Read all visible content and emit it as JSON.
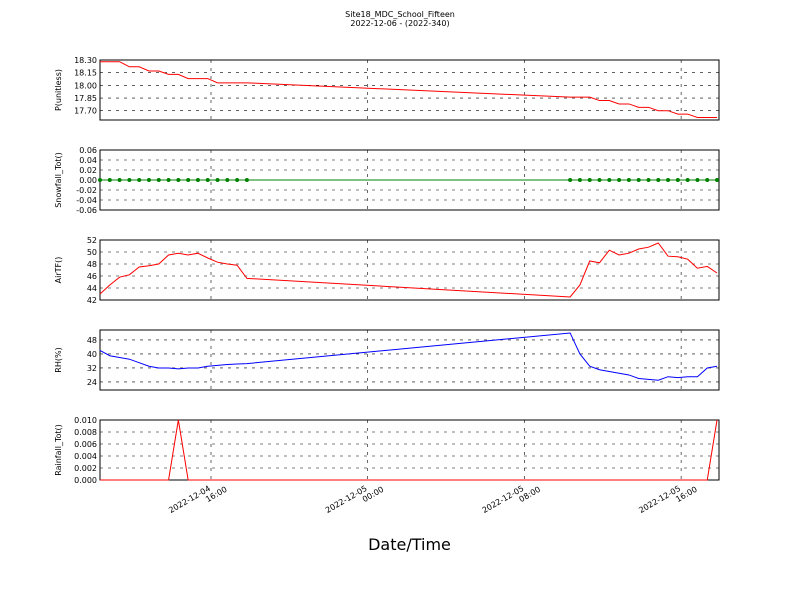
{
  "title": "Site18_MDC_School_Fifteen",
  "subtitle": "2022-12-06 - (2022-340)",
  "chart_data": [
    {
      "type": "line",
      "ylabel": "P(unitless)",
      "x": [
        "2022-12-04 10:20",
        "2022-12-04 10:50",
        "2022-12-04 11:20",
        "2022-12-04 11:50",
        "2022-12-04 12:20",
        "2022-12-04 12:50",
        "2022-12-04 13:20",
        "2022-12-04 13:50",
        "2022-12-04 14:20",
        "2022-12-04 14:50",
        "2022-12-04 15:20",
        "2022-12-04 15:50",
        "2022-12-04 16:20",
        "2022-12-04 16:50",
        "2022-12-04 17:20",
        "2022-12-04 17:50",
        "2022-12-05 10:20",
        "2022-12-05 10:50",
        "2022-12-05 11:20",
        "2022-12-05 11:50",
        "2022-12-05 12:20",
        "2022-12-05 12:50",
        "2022-12-05 13:20",
        "2022-12-05 13:50",
        "2022-12-05 14:20",
        "2022-12-05 14:50",
        "2022-12-05 15:20",
        "2022-12-05 15:50",
        "2022-12-05 16:20",
        "2022-12-05 16:50",
        "2022-12-05 17:20",
        "2022-12-05 17:50"
      ],
      "series": [
        {
          "color": "#ff0000",
          "values": [
            18.28,
            18.28,
            18.28,
            18.22,
            18.22,
            18.17,
            18.17,
            18.13,
            18.13,
            18.08,
            18.08,
            18.08,
            18.03,
            18.03,
            18.03,
            18.03,
            17.86,
            17.86,
            17.86,
            17.82,
            17.82,
            17.78,
            17.78,
            17.74,
            17.74,
            17.7,
            17.7,
            17.66,
            17.66,
            17.62,
            17.62,
            17.62
          ]
        }
      ],
      "ylim": [
        17.59,
        18.3
      ],
      "yticks": [
        {
          "value": 17.7,
          "label": "17.70"
        },
        17.85,
        {
          "value": 18.0,
          "label": "18.00"
        },
        18.15,
        {
          "value": 18.3,
          "label": "18.30"
        }
      ]
    },
    {
      "type": "line",
      "ylabel": "Snowfall_Tot()",
      "x": [
        "2022-12-04 10:20",
        "2022-12-04 10:50",
        "2022-12-04 11:20",
        "2022-12-04 11:50",
        "2022-12-04 12:20",
        "2022-12-04 12:50",
        "2022-12-04 13:20",
        "2022-12-04 13:50",
        "2022-12-04 14:20",
        "2022-12-04 14:50",
        "2022-12-04 15:20",
        "2022-12-04 15:50",
        "2022-12-04 16:20",
        "2022-12-04 16:50",
        "2022-12-04 17:20",
        "2022-12-04 17:50",
        "2022-12-05 10:20",
        "2022-12-05 10:50",
        "2022-12-05 11:20",
        "2022-12-05 11:50",
        "2022-12-05 12:20",
        "2022-12-05 12:50",
        "2022-12-05 13:20",
        "2022-12-05 13:50",
        "2022-12-05 14:20",
        "2022-12-05 14:50",
        "2022-12-05 15:20",
        "2022-12-05 15:50",
        "2022-12-05 16:20",
        "2022-12-05 16:50",
        "2022-12-05 17:20",
        "2022-12-05 17:50"
      ],
      "series": [
        {
          "color": "#008000",
          "marker": true,
          "values": [
            0,
            0,
            0,
            0,
            0,
            0,
            0,
            0,
            0,
            0,
            0,
            0,
            0,
            0,
            0,
            0,
            0,
            0,
            0,
            0,
            0,
            0,
            0,
            0,
            0,
            0,
            0,
            0,
            0,
            0,
            0,
            0
          ]
        }
      ],
      "ylim": [
        -0.06,
        0.06
      ],
      "yticks": [
        -0.06,
        -0.04,
        -0.02,
        {
          "value": 0,
          "label": "0.00"
        },
        0.02,
        0.04,
        0.06
      ]
    },
    {
      "type": "line",
      "ylabel": "AirTF()",
      "x": [
        "2022-12-04 10:20",
        "2022-12-04 10:50",
        "2022-12-04 11:20",
        "2022-12-04 11:50",
        "2022-12-04 12:20",
        "2022-12-04 12:50",
        "2022-12-04 13:20",
        "2022-12-04 13:50",
        "2022-12-04 14:20",
        "2022-12-04 14:50",
        "2022-12-04 15:20",
        "2022-12-04 15:50",
        "2022-12-04 16:20",
        "2022-12-04 16:50",
        "2022-12-04 17:20",
        "2022-12-04 17:50",
        "2022-12-05 10:20",
        "2022-12-05 10:50",
        "2022-12-05 11:20",
        "2022-12-05 11:50",
        "2022-12-05 12:20",
        "2022-12-05 12:50",
        "2022-12-05 13:20",
        "2022-12-05 13:50",
        "2022-12-05 14:20",
        "2022-12-05 14:50",
        "2022-12-05 15:20",
        "2022-12-05 15:50",
        "2022-12-05 16:20",
        "2022-12-05 16:50",
        "2022-12-05 17:20",
        "2022-12-05 17:50"
      ],
      "series": [
        {
          "color": "#ff0000",
          "values": [
            43,
            44.5,
            45.8,
            46.2,
            47.5,
            47.7,
            48,
            49.5,
            49.8,
            49.5,
            49.8,
            49,
            48.3,
            48,
            47.8,
            45.6,
            42.5,
            44.5,
            48.5,
            48.2,
            50.3,
            49.5,
            49.8,
            50.5,
            50.8,
            51.5,
            49.3,
            49.2,
            48.8,
            47.3,
            47.6,
            46.5
          ]
        }
      ],
      "ylim": [
        42,
        52
      ],
      "yticks": [
        42,
        44,
        46,
        48,
        50,
        52
      ]
    },
    {
      "type": "line",
      "ylabel": "RH(%)",
      "x": [
        "2022-12-04 10:20",
        "2022-12-04 10:50",
        "2022-12-04 11:20",
        "2022-12-04 11:50",
        "2022-12-04 12:20",
        "2022-12-04 12:50",
        "2022-12-04 13:20",
        "2022-12-04 13:50",
        "2022-12-04 14:20",
        "2022-12-04 14:50",
        "2022-12-04 15:20",
        "2022-12-04 15:50",
        "2022-12-04 16:20",
        "2022-12-04 16:50",
        "2022-12-04 17:20",
        "2022-12-04 17:50",
        "2022-12-05 10:20",
        "2022-12-05 10:50",
        "2022-12-05 11:20",
        "2022-12-05 11:50",
        "2022-12-05 12:20",
        "2022-12-05 12:50",
        "2022-12-05 13:20",
        "2022-12-05 13:50",
        "2022-12-05 14:20",
        "2022-12-05 14:50",
        "2022-12-05 15:20",
        "2022-12-05 15:50",
        "2022-12-05 16:20",
        "2022-12-05 16:50",
        "2022-12-05 17:20",
        "2022-12-05 17:50"
      ],
      "series": [
        {
          "color": "#0000ff",
          "values": [
            42,
            39,
            38,
            37,
            35,
            33,
            32,
            32,
            31.5,
            32,
            32,
            33,
            33.5,
            34,
            34.3,
            34.5,
            52,
            40,
            33,
            31,
            30,
            29,
            28,
            26,
            25.5,
            25,
            27,
            26.5,
            27,
            27,
            32,
            33
          ]
        }
      ],
      "ylim": [
        19.4,
        53.7
      ],
      "yticks": [
        24,
        32,
        40,
        48
      ]
    },
    {
      "type": "line",
      "ylabel": "Rainfall_Tot()",
      "xlabel": "Date/Time",
      "x": [
        "2022-12-04 10:20",
        "2022-12-04 10:50",
        "2022-12-04 11:20",
        "2022-12-04 11:50",
        "2022-12-04 12:20",
        "2022-12-04 12:50",
        "2022-12-04 13:20",
        "2022-12-04 13:50",
        "2022-12-04 14:20",
        "2022-12-04 14:50",
        "2022-12-04 15:20",
        "2022-12-04 15:50",
        "2022-12-04 16:20",
        "2022-12-04 16:50",
        "2022-12-04 17:20",
        "2022-12-04 17:50",
        "2022-12-05 10:20",
        "2022-12-05 10:50",
        "2022-12-05 11:20",
        "2022-12-05 11:50",
        "2022-12-05 12:20",
        "2022-12-05 12:50",
        "2022-12-05 13:20",
        "2022-12-05 13:50",
        "2022-12-05 14:20",
        "2022-12-05 14:50",
        "2022-12-05 15:20",
        "2022-12-05 15:50",
        "2022-12-05 16:20",
        "2022-12-05 16:50",
        "2022-12-05 17:20",
        "2022-12-05 17:50"
      ],
      "series": [
        {
          "color": "#ff0000",
          "values": [
            0,
            0,
            0,
            0,
            0,
            0,
            0,
            0,
            0.01,
            0,
            0,
            0,
            0,
            0,
            0,
            0,
            0,
            0,
            0,
            0,
            0,
            0,
            0,
            0,
            0,
            0,
            0,
            0,
            0,
            0,
            0,
            0.01
          ]
        }
      ],
      "ylim": [
        0,
        0.01
      ],
      "yticks": [
        {
          "value": 0,
          "label": "0.000"
        },
        0.002,
        0.004,
        0.006,
        0.008,
        {
          "value": 0.01,
          "label": "0.010"
        }
      ],
      "xlim": [
        "2022-12-04 10:20",
        "2022-12-05 17:56"
      ],
      "xticks": [
        "2022-12-04 16:00",
        "2022-12-05 00:00",
        "2022-12-05 08:00",
        "2022-12-05 16:00"
      ]
    }
  ]
}
